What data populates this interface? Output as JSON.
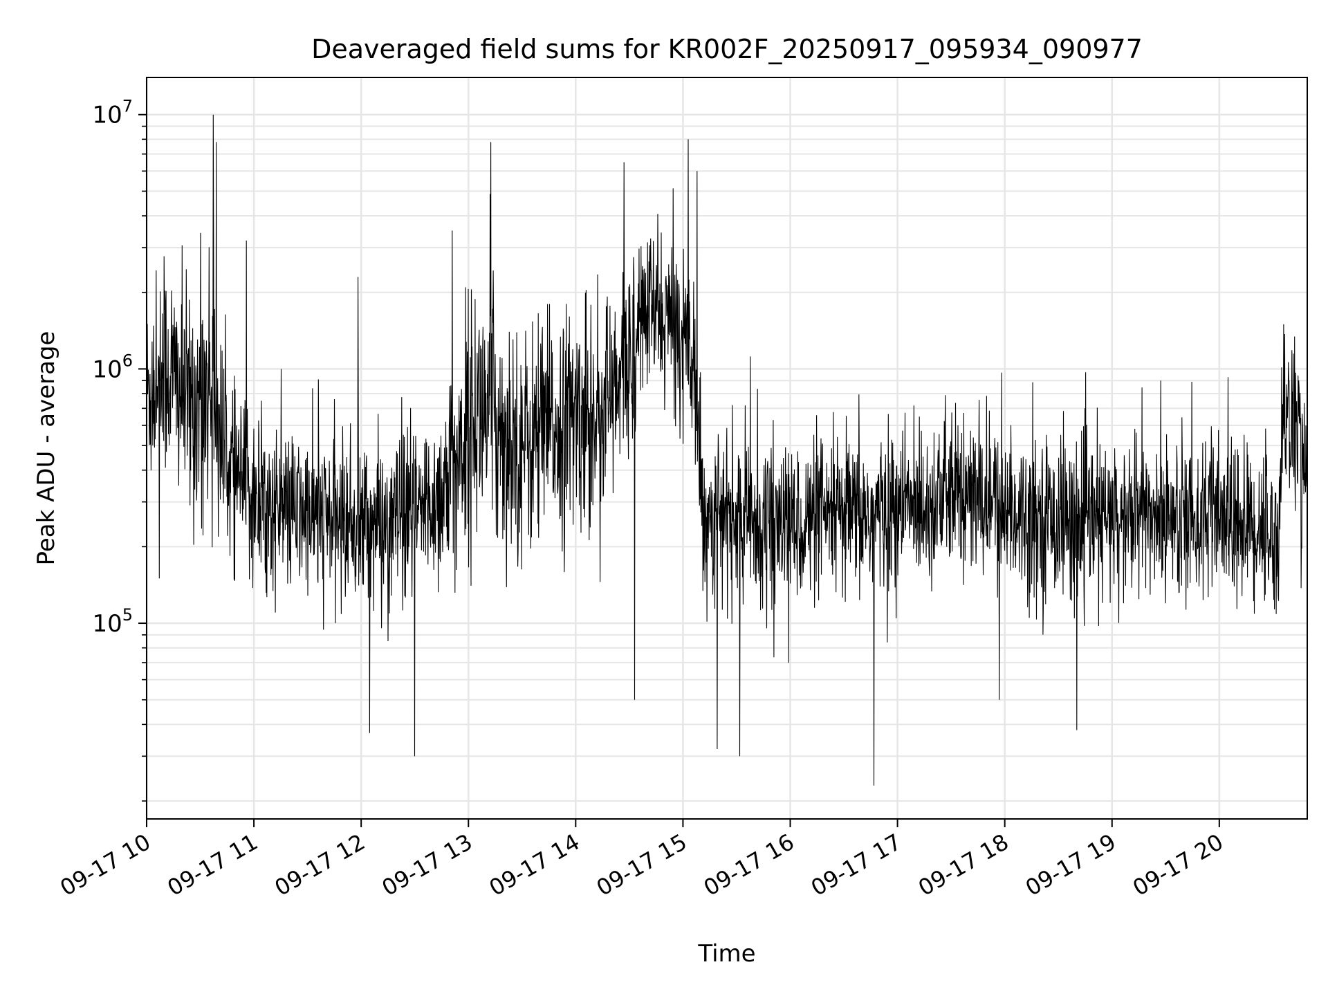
{
  "chart_data": {
    "type": "line",
    "title": "Deaveraged field sums for KR002F_20250917_095934_090977",
    "xlabel": "Time",
    "ylabel": "Peak ADU - average",
    "x_tick_labels": [
      "09-17 10",
      "09-17 11",
      "09-17 12",
      "09-17 13",
      "09-17 14",
      "09-17 15",
      "09-17 16",
      "09-17 17",
      "09-17 18",
      "09-17 19",
      "09-17 20"
    ],
    "x_ticks_hours": [
      10,
      11,
      12,
      13,
      14,
      15,
      16,
      17,
      18,
      19,
      20
    ],
    "xlim_hours": [
      10.0,
      20.82
    ],
    "yscale": "log",
    "ylim": [
      17000,
      14000000
    ],
    "y_tick_values": [
      100000,
      1000000,
      10000000
    ],
    "y_tick_labels": [
      {
        "base": "10",
        "exp": "5"
      },
      {
        "base": "10",
        "exp": "6"
      },
      {
        "base": "10",
        "exp": "7"
      }
    ],
    "grid": true,
    "line_color": "#000000",
    "grid_color": "#e6e6e6",
    "series": [
      {
        "x_hours": [
          10.0,
          10.1,
          10.2,
          10.3,
          10.4,
          10.5,
          10.6,
          10.7,
          10.8,
          10.9,
          11.0,
          11.2,
          11.4,
          11.6,
          11.8,
          12.0,
          12.2,
          12.4,
          12.6,
          12.8,
          12.9,
          13.0,
          13.1,
          13.2,
          13.3,
          13.4,
          13.5,
          13.6,
          13.7,
          13.8,
          13.9,
          14.0,
          14.2,
          14.4,
          14.5,
          14.6,
          14.7,
          14.8,
          14.9,
          15.0,
          15.1,
          15.15,
          15.2,
          15.4,
          15.6,
          15.8,
          16.0,
          16.2,
          16.4,
          16.6,
          16.8,
          17.0,
          17.2,
          17.4,
          17.6,
          17.8,
          18.0,
          18.2,
          18.4,
          18.6,
          18.8,
          19.0,
          19.2,
          19.4,
          19.6,
          19.8,
          20.0,
          20.2,
          20.4,
          20.5,
          20.55,
          20.6,
          20.7,
          20.82
        ],
        "median": [
          800000,
          900000,
          1000000,
          850000,
          700000,
          800000,
          900000,
          500000,
          400000,
          350000,
          300000,
          280000,
          270000,
          260000,
          255000,
          250000,
          240000,
          250000,
          280000,
          350000,
          450000,
          600000,
          700000,
          650000,
          600000,
          550000,
          500000,
          520000,
          560000,
          580000,
          600000,
          650000,
          700000,
          800000,
          1100000,
          1600000,
          1700000,
          1600000,
          1500000,
          1400000,
          1300000,
          400000,
          280000,
          260000,
          250000,
          250000,
          245000,
          250000,
          255000,
          260000,
          265000,
          280000,
          300000,
          310000,
          320000,
          300000,
          280000,
          270000,
          260000,
          250000,
          250000,
          255000,
          260000,
          265000,
          270000,
          260000,
          250000,
          250000,
          240000,
          220000,
          200000,
          700000,
          600000,
          400000
        ],
        "spread_decades": [
          0.35,
          0.4,
          0.4,
          0.4,
          0.4,
          0.45,
          0.45,
          0.35,
          0.3,
          0.3,
          0.3,
          0.28,
          0.28,
          0.28,
          0.28,
          0.3,
          0.3,
          0.3,
          0.3,
          0.35,
          0.4,
          0.45,
          0.45,
          0.45,
          0.45,
          0.4,
          0.4,
          0.4,
          0.4,
          0.4,
          0.4,
          0.4,
          0.4,
          0.4,
          0.35,
          0.3,
          0.3,
          0.3,
          0.3,
          0.3,
          0.3,
          0.3,
          0.28,
          0.28,
          0.28,
          0.28,
          0.28,
          0.28,
          0.28,
          0.28,
          0.28,
          0.28,
          0.28,
          0.28,
          0.28,
          0.28,
          0.28,
          0.28,
          0.28,
          0.28,
          0.28,
          0.28,
          0.28,
          0.28,
          0.28,
          0.28,
          0.28,
          0.28,
          0.28,
          0.28,
          0.28,
          0.3,
          0.3,
          0.3
        ],
        "notable_peaks": [
          {
            "x_hours": 10.62,
            "y": 10000000
          },
          {
            "x_hours": 10.65,
            "y": 7800000
          },
          {
            "x_hours": 13.21,
            "y": 7800000
          },
          {
            "x_hours": 14.45,
            "y": 6500000
          },
          {
            "x_hours": 15.05,
            "y": 8000000
          },
          {
            "x_hours": 15.13,
            "y": 6000000
          },
          {
            "x_hours": 11.97,
            "y": 2300000
          },
          {
            "x_hours": 12.85,
            "y": 3500000
          },
          {
            "x_hours": 10.93,
            "y": 3200000
          },
          {
            "x_hours": 20.6,
            "y": 1500000
          }
        ],
        "notable_dips": [
          {
            "x_hours": 12.5,
            "y": 30000
          },
          {
            "x_hours": 15.32,
            "y": 32000
          },
          {
            "x_hours": 15.53,
            "y": 30000
          },
          {
            "x_hours": 16.78,
            "y": 23000
          },
          {
            "x_hours": 18.67,
            "y": 38000
          },
          {
            "x_hours": 12.08,
            "y": 37000
          },
          {
            "x_hours": 14.55,
            "y": 50000
          },
          {
            "x_hours": 17.95,
            "y": 50000
          }
        ]
      }
    ]
  }
}
